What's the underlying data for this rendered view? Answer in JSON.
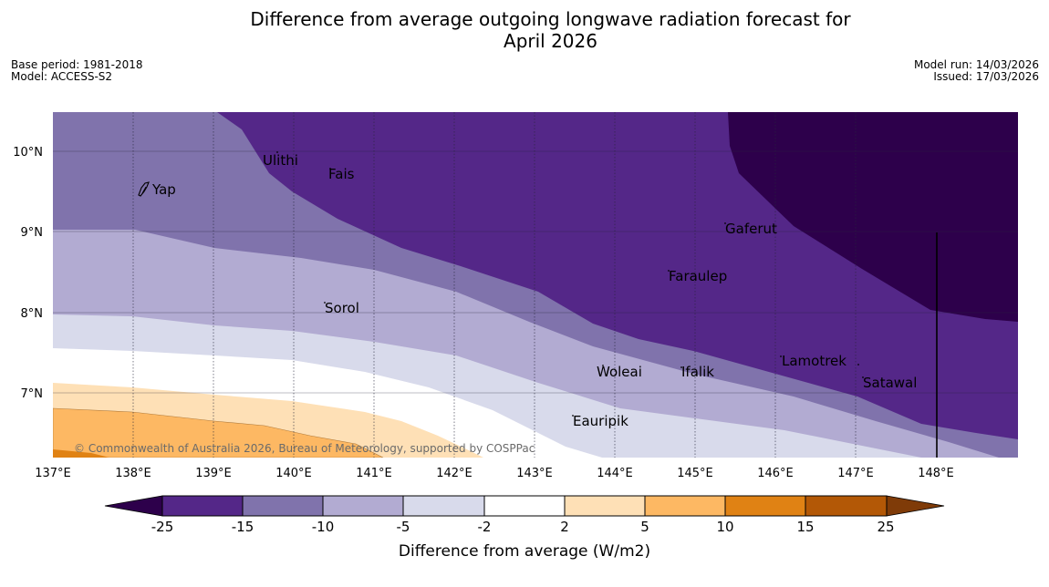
{
  "title_line1": "Difference from average outgoing longwave radiation forecast for",
  "title_line2": "April 2026",
  "meta": {
    "base_period": "Base period: 1981-2018",
    "model": "Model: ACCESS-S2",
    "model_run": "Model run: 14/03/2026",
    "issued": "Issued: 17/03/2026"
  },
  "map": {
    "lat_labels": [
      "10°N",
      "9°N",
      "8°N",
      "7°N"
    ],
    "lon_labels": [
      "137°E",
      "138°E",
      "139°E",
      "140°E",
      "141°E",
      "142°E",
      "143°E",
      "144°E",
      "145°E",
      "146°E",
      "147°E",
      "148°E"
    ],
    "places": [
      "Ulithi",
      "Yap",
      "Fais",
      "Gaferut",
      "Faraulep",
      "Sorol",
      "Woleai",
      "Ifalik",
      "Lamotrek",
      "Satawal",
      "Eauripik"
    ],
    "copyright": "© Commonwealth of Australia 2026, Bureau of Meteorology, supported by COSPPac"
  },
  "colorbar": {
    "tick_labels": [
      "-25",
      "-15",
      "-10",
      "-5",
      "-2",
      "2",
      "5",
      "10",
      "15",
      "25"
    ],
    "label": "Difference from average (W/m2)",
    "colors": {
      "below": "#2d004b",
      "c1": "#542788",
      "c2": "#8073ac",
      "c3": "#b2abd2",
      "c4": "#d8daeb",
      "c5": "#ffffff",
      "c6": "#fee0b6",
      "c7": "#fdb863",
      "c8": "#e08214",
      "c9": "#b35806",
      "above": "#7f3b08"
    }
  }
}
